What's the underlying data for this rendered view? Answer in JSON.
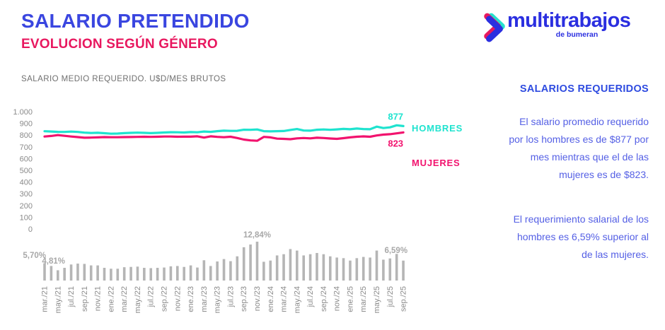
{
  "header": {
    "title": "SALARIO PRETENDIDO",
    "subtitle": "EVOLUCION SEGÚN GÉNERO",
    "caption": "SALARIO MEDIO REQUERIDO. U$D/MES BRUTOS"
  },
  "logo": {
    "name": "multitrabajos",
    "tagline": "de bumeran"
  },
  "colors": {
    "title_blue": "#3a46e0",
    "subtitle_pink": "#e8185f",
    "caption_gray": "#6f6f6f",
    "logo_blue": "#2b2fe0",
    "logo_cyan": "#25e0cf",
    "logo_crimson": "#e8185f",
    "hombres_cyan": "#1fe3cf",
    "mujeres_pink": "#f2136e",
    "bar_gray": "#b5b5b5",
    "bar_label_gray": "#a8a8a8",
    "axis_gray": "#8a8a8a",
    "panel_heading": "#2e4be0",
    "panel_text": "#5560e5"
  },
  "chart_data": [
    {
      "type": "line",
      "title": "SALARIO MEDIO REQUERIDO. U$D/MES BRUTOS",
      "ylim": [
        0,
        1000
      ],
      "grid": false,
      "y_tick_labels": [
        "1.000",
        "900",
        "800",
        "700",
        "600",
        "500",
        "400",
        "300",
        "200",
        "100",
        "0"
      ],
      "y_tick_values": [
        1000,
        900,
        800,
        700,
        600,
        500,
        400,
        300,
        200,
        100,
        0
      ],
      "n_points": 55,
      "x_tick_every": 2,
      "x_tick_labels": [
        "mar./21",
        "may./21",
        "jul./21",
        "sep./21",
        "nov./21",
        "ene./22",
        "mar./22",
        "may./22",
        "jul./22",
        "sep./22",
        "nov./22",
        "ene./23",
        "mar./23",
        "may./23",
        "jul./23",
        "sep./23",
        "nov./23",
        "ene./24",
        "mar./24",
        "may./24",
        "jul./24",
        "sep./24",
        "nov./24",
        "ene./25",
        "mar./25",
        "may./25",
        "jul./25",
        "sep./25"
      ],
      "series": [
        {
          "name": "HOMBRES",
          "end_label": "877",
          "values": [
            833,
            831,
            828,
            827,
            830,
            827,
            821,
            818,
            820,
            816,
            812,
            813,
            817,
            819,
            821,
            819,
            817,
            819,
            822,
            825,
            824,
            822,
            826,
            824,
            831,
            828,
            834,
            838,
            836,
            837,
            846,
            845,
            848,
            834,
            832,
            834,
            835,
            844,
            852,
            839,
            838,
            846,
            848,
            845,
            849,
            853,
            850,
            856,
            852,
            850,
            872,
            860,
            866,
            884,
            877
          ]
        },
        {
          "name": "MUJERES",
          "end_label": "823",
          "values": [
            788,
            793,
            800,
            794,
            788,
            783,
            778,
            779,
            781,
            783,
            782,
            782,
            783,
            784,
            785,
            786,
            785,
            786,
            788,
            788,
            786,
            787,
            787,
            790,
            779,
            790,
            785,
            782,
            786,
            775,
            762,
            755,
            752,
            785,
            781,
            770,
            768,
            765,
            772,
            775,
            772,
            778,
            775,
            771,
            768,
            774,
            781,
            786,
            789,
            786,
            797,
            804,
            808,
            815,
            823
          ]
        }
      ]
    },
    {
      "type": "bar",
      "name": "Diferencia salarial hombres vs mujeres (%)",
      "values": [
        5.7,
        4.81,
        3.4,
        4.2,
        5.3,
        5.6,
        5.5,
        5.0,
        5.0,
        4.2,
        3.9,
        3.9,
        4.4,
        4.5,
        4.6,
        4.2,
        4.1,
        4.2,
        4.3,
        4.7,
        4.8,
        4.5,
        5.0,
        4.3,
        6.7,
        4.8,
        6.3,
        7.1,
        6.4,
        8.0,
        11.0,
        11.9,
        12.84,
        6.2,
        6.6,
        8.3,
        8.7,
        10.4,
        9.9,
        8.3,
        8.7,
        9.1,
        8.7,
        8.0,
        7.6,
        7.4,
        6.6,
        7.4,
        7.8,
        7.6,
        9.9,
        6.9,
        7.3,
        8.8,
        6.59
      ],
      "point_labels": [
        {
          "index": 0,
          "text": "5,70%"
        },
        {
          "index": 1,
          "text": "4,81%"
        },
        {
          "index": 32,
          "text": "12,84%"
        },
        {
          "index": 54,
          "text": "6,59%"
        }
      ]
    }
  ],
  "side_panel": {
    "heading": "SALARIOS REQUERIDOS",
    "paragraph1": [
      "El salario promedio requerido",
      "por los hombres es de $877 por",
      "mes mientras que el de las",
      "mujeres es de $823."
    ],
    "paragraph2": [
      "El requerimiento salarial de los",
      "hombres es 6,59% superior al",
      "de las mujeres."
    ]
  }
}
